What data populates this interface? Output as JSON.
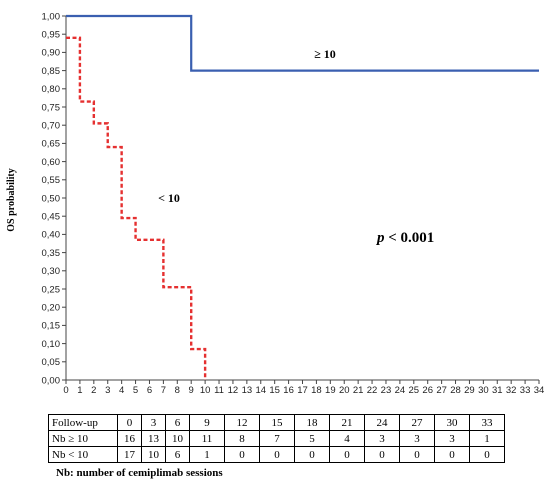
{
  "chart_data": {
    "type": "line",
    "subtype": "kaplan-meier",
    "ylabel": "OS probability",
    "xlabel": "",
    "xlim": [
      0,
      34
    ],
    "ylim": [
      0,
      1
    ],
    "x_ticks": [
      0,
      1,
      2,
      3,
      4,
      5,
      6,
      7,
      8,
      9,
      10,
      11,
      12,
      13,
      14,
      15,
      16,
      17,
      18,
      19,
      20,
      21,
      22,
      23,
      24,
      25,
      26,
      27,
      28,
      29,
      30,
      31,
      32,
      33,
      34
    ],
    "y_ticks": [
      "0,00",
      "0,05",
      "0,10",
      "0,15",
      "0,20",
      "0,25",
      "0,30",
      "0,35",
      "0,40",
      "0,45",
      "0,50",
      "0,55",
      "0,60",
      "0,65",
      "0,70",
      "0,75",
      "0,80",
      "0,85",
      "0,90",
      "0,95",
      "1,00"
    ],
    "grid": false,
    "series": [
      {
        "name": "≥ 10",
        "color": "#3a5fb0",
        "style": "solid",
        "steps": [
          [
            0,
            1.0
          ],
          [
            9,
            0.85
          ],
          [
            34,
            0.85
          ]
        ]
      },
      {
        "name": "< 10",
        "color": "#e53030",
        "style": "dashed",
        "steps": [
          [
            0,
            0.94
          ],
          [
            1,
            0.765
          ],
          [
            2,
            0.705
          ],
          [
            3,
            0.64
          ],
          [
            4,
            0.445
          ],
          [
            5,
            0.385
          ],
          [
            7,
            0.255
          ],
          [
            9,
            0.085
          ],
          [
            10,
            0.0
          ]
        ]
      }
    ],
    "annotations": [
      {
        "text": "≥ 10",
        "x": 19.3,
        "y": 0.895
      },
      {
        "text": "< 10",
        "x": 6.8,
        "y": 0.495
      },
      {
        "text_italic": "p",
        "text": " < 0.001",
        "x": 22.5,
        "y": 0.4
      }
    ]
  },
  "table": {
    "header_label": "Follow-up",
    "header": [
      "0",
      "3",
      "6",
      "9",
      "12",
      "15",
      "18",
      "21",
      "24",
      "27",
      "30",
      "33"
    ],
    "rows": [
      {
        "label": "Nb ≥ 10",
        "values": [
          "16",
          "13",
          "10",
          "11",
          "8",
          "7",
          "5",
          "4",
          "3",
          "3",
          "3",
          "1"
        ]
      },
      {
        "label": "Nb < 10",
        "values": [
          "17",
          "10",
          "6",
          "1",
          "0",
          "0",
          "0",
          "0",
          "0",
          "0",
          "0",
          "0"
        ]
      }
    ]
  },
  "footnote": "Nb: number of cemiplimab sessions"
}
